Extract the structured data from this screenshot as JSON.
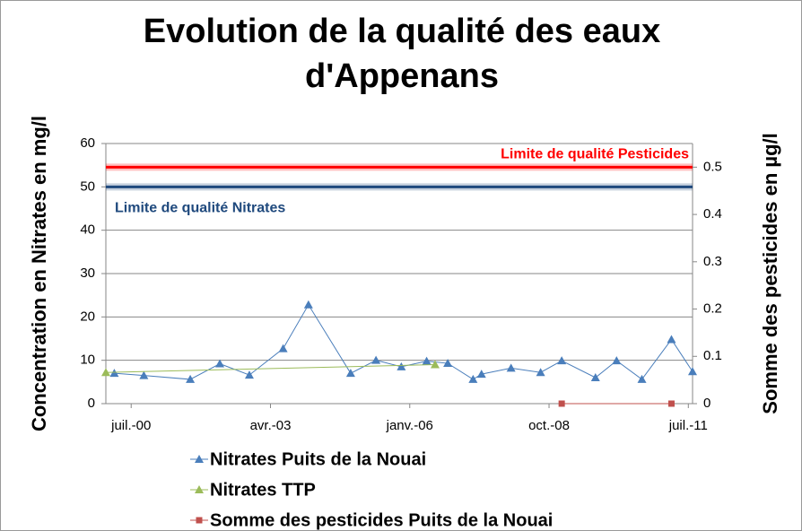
{
  "chart_data": {
    "type": "line",
    "title": "Evolution de la qualité des eaux d'Appenans",
    "y_label": "Concentration en Nitrates en mg/l",
    "y2_label": "Somme des pesticides en µg/l",
    "xlim": [
      "2000-01",
      "2011-08"
    ],
    "xticks": [
      {
        "value": "2000-07",
        "label": "juil.-00"
      },
      {
        "value": "2003-04",
        "label": "avr.-03"
      },
      {
        "value": "2006-01",
        "label": "janv.-06"
      },
      {
        "value": "2008-10",
        "label": "oct.-08"
      },
      {
        "value": "2011-07",
        "label": "juil.-11"
      }
    ],
    "ylim": [
      0,
      60
    ],
    "yticks": [
      0,
      10,
      20,
      30,
      40,
      50,
      60
    ],
    "y2lim": [
      0,
      0.55
    ],
    "y2ticks": [
      0,
      0.1,
      0.2,
      0.3,
      0.4,
      0.5
    ],
    "grid": true,
    "legend": "bottom",
    "series": [
      {
        "name": "Nitrates Puits de la Nouai",
        "color": "#4a7ebb",
        "marker": "triangle",
        "x": [
          "2000-03",
          "2000-10",
          "2001-09",
          "2002-04",
          "2002-11",
          "2003-07",
          "2004-01",
          "2004-11",
          "2005-05",
          "2005-11",
          "2006-05",
          "2006-10",
          "2007-04",
          "2007-06",
          "2008-01",
          "2008-08",
          "2009-01",
          "2009-09",
          "2010-02",
          "2010-08",
          "2011-03",
          "2011-08"
        ],
        "values": [
          7.0,
          6.5,
          5.6,
          9.2,
          6.6,
          12.7,
          22.8,
          7.0,
          10.0,
          8.5,
          9.8,
          9.3,
          5.6,
          6.8,
          8.2,
          7.2,
          9.9,
          6.0,
          9.9,
          5.6,
          14.8,
          7.4
        ]
      },
      {
        "name": "Nitrates TTP",
        "color": "#9bbb59",
        "marker": "triangle",
        "x": [
          "2000-01",
          "2006-07"
        ],
        "values": [
          7.2,
          9.0
        ]
      },
      {
        "name": "Somme des pesticides Puits de la Nouai",
        "color": "#c0504d",
        "marker": "square",
        "axis": "y2",
        "x": [
          "2009-01",
          "2011-03"
        ],
        "values": [
          0,
          0
        ]
      }
    ],
    "reference_lines": [
      {
        "label": "Limite de qualité Nitrates",
        "value": 50,
        "color": "#1f497d"
      },
      {
        "label": "Limite de qualité Pesticides",
        "value": 0.5,
        "axis": "y2",
        "color": "#ff0000"
      }
    ]
  }
}
